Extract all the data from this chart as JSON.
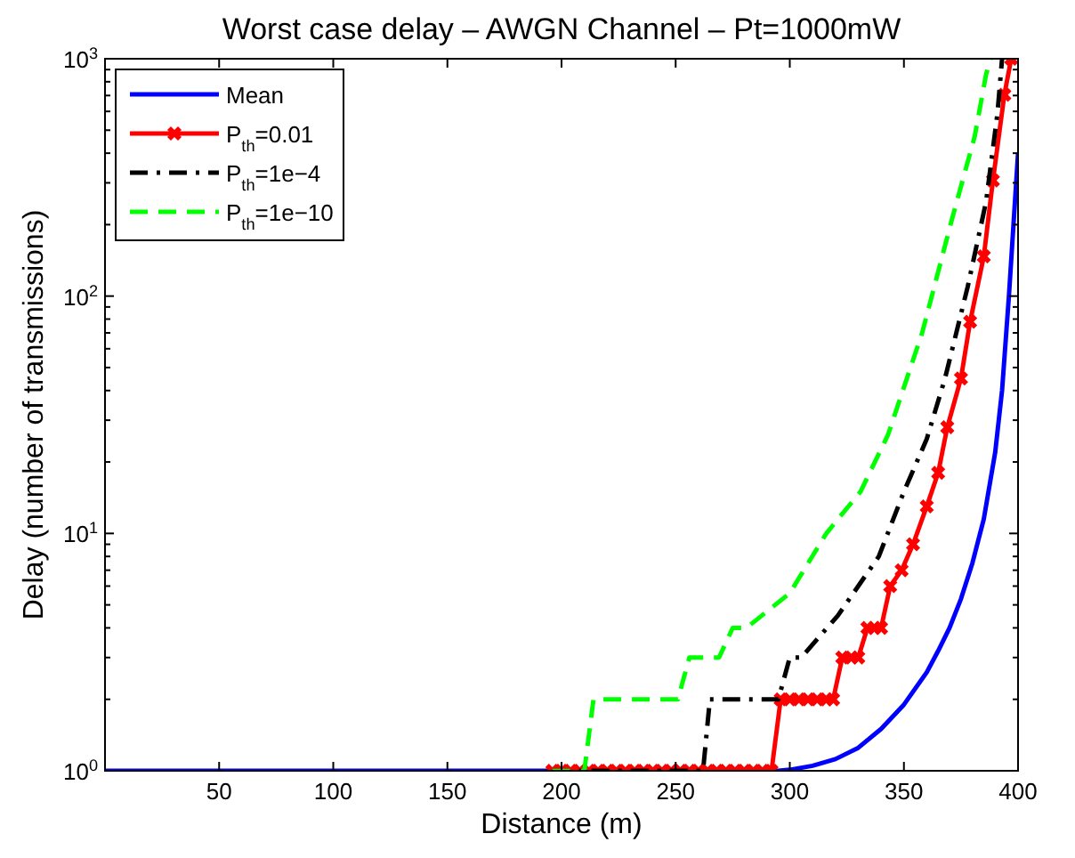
{
  "chart_data": {
    "type": "line",
    "title": "Worst case delay – AWGN Channel – Pt=1000mW",
    "xlabel": "Distance (m)",
    "ylabel": "Delay (number of transmissions)",
    "log": "y",
    "xlim": [
      0,
      400
    ],
    "xticks": [
      50,
      100,
      150,
      200,
      250,
      300,
      350,
      400
    ],
    "ylim": [
      1,
      1000
    ],
    "yticks": [
      {
        "value": 1,
        "label": "10$^{0}$"
      },
      {
        "value": 2,
        "label": null
      },
      {
        "value": 3,
        "label": null
      },
      {
        "value": 4,
        "label": null
      },
      {
        "value": 5,
        "label": null
      },
      {
        "value": 6,
        "label": null
      },
      {
        "value": 7,
        "label": null
      },
      {
        "value": 8,
        "label": null
      },
      {
        "value": 9,
        "label": null
      },
      {
        "value": 10,
        "label": "10$^{1}$"
      },
      {
        "value": 20,
        "label": null
      },
      {
        "value": 30,
        "label": null
      },
      {
        "value": 40,
        "label": null
      },
      {
        "value": 50,
        "label": null
      },
      {
        "value": 60,
        "label": null
      },
      {
        "value": 70,
        "label": null
      },
      {
        "value": 80,
        "label": null
      },
      {
        "value": 90,
        "label": null
      },
      {
        "value": 100,
        "label": "10$^{2}$"
      },
      {
        "value": 200,
        "label": null
      },
      {
        "value": 300,
        "label": null
      },
      {
        "value": 400,
        "label": null
      },
      {
        "value": 500,
        "label": null
      },
      {
        "value": 600,
        "label": null
      },
      {
        "value": 700,
        "label": null
      },
      {
        "value": 800,
        "label": null
      },
      {
        "value": 900,
        "label": null
      },
      {
        "value": 1000,
        "label": "10$^{3}$"
      }
    ],
    "grid": false,
    "legend": "top left",
    "series": [
      {
        "name": "Mean",
        "color": "#0000ff",
        "line_style": "solid",
        "marker": "none",
        "x": [
          0,
          295,
          300,
          310,
          320,
          330,
          340,
          350,
          360,
          365,
          370,
          375,
          380,
          385,
          390,
          393,
          396,
          398,
          400
        ],
        "values": [
          1,
          1,
          1.01,
          1.05,
          1.12,
          1.25,
          1.5,
          1.9,
          2.6,
          3.2,
          4,
          5.3,
          7.5,
          11.5,
          22,
          40,
          100,
          200,
          400
        ]
      },
      {
        "name": "P$_{th}$=0.01",
        "color": "#ff0000",
        "line_style": "solid",
        "marker": "cross",
        "x": [
          196,
          200,
          204,
          208,
          212,
          216,
          220,
          224,
          228,
          232,
          236,
          240,
          244,
          248,
          252,
          256,
          260,
          264,
          268,
          272,
          276,
          280,
          284,
          288,
          292,
          296,
          300,
          304,
          308,
          312,
          316,
          319,
          323,
          327,
          330,
          334,
          337,
          340,
          344,
          349,
          354,
          360,
          365,
          369,
          375,
          379,
          385,
          389,
          394,
          397
        ],
        "values": [
          1,
          1,
          1,
          1,
          1,
          1,
          1,
          1,
          1,
          1,
          1,
          1,
          1,
          1,
          1,
          1,
          1,
          1,
          1,
          1,
          1,
          1,
          1,
          1,
          1,
          2,
          2,
          2,
          2,
          2,
          2,
          2,
          3,
          3,
          3,
          4,
          4,
          4,
          6,
          7,
          9,
          13,
          18,
          28,
          45,
          78,
          147,
          307,
          705,
          1000
        ]
      },
      {
        "name": "P$_{th}$=1e−4",
        "color": "#000000",
        "line_style": "dashdot",
        "marker": "none",
        "x": [
          196,
          262,
          265,
          295,
          300,
          305,
          321,
          339,
          350,
          360,
          368,
          378,
          386,
          391,
          393
        ],
        "values": [
          1,
          1,
          2,
          2,
          3,
          3,
          4.5,
          8,
          15,
          25,
          45,
          110,
          250,
          590,
          1000
        ]
      },
      {
        "name": "P$_{th}$=1e−10",
        "color": "#00ff00",
        "line_style": "dashed",
        "marker": "none",
        "x": [
          196,
          210,
          214,
          251,
          256,
          269,
          275,
          281,
          300,
          316,
          331,
          343,
          358,
          371,
          381,
          386,
          388
        ],
        "values": [
          1,
          1,
          2,
          2,
          3,
          3,
          4,
          4,
          5.6,
          10,
          15,
          26,
          70,
          210,
          470,
          860,
          1000
        ]
      }
    ]
  }
}
